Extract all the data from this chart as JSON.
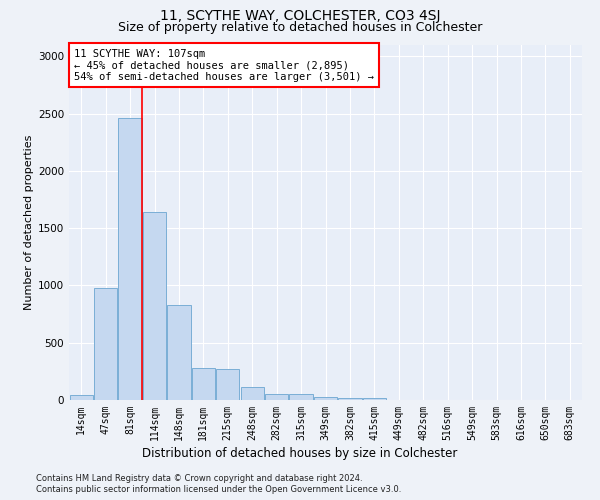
{
  "title": "11, SCYTHE WAY, COLCHESTER, CO3 4SJ",
  "subtitle": "Size of property relative to detached houses in Colchester",
  "xlabel": "Distribution of detached houses by size in Colchester",
  "ylabel": "Number of detached properties",
  "footnote1": "Contains HM Land Registry data © Crown copyright and database right 2024.",
  "footnote2": "Contains public sector information licensed under the Open Government Licence v3.0.",
  "categories": [
    "14sqm",
    "47sqm",
    "81sqm",
    "114sqm",
    "148sqm",
    "181sqm",
    "215sqm",
    "248sqm",
    "282sqm",
    "315sqm",
    "349sqm",
    "382sqm",
    "415sqm",
    "449sqm",
    "482sqm",
    "516sqm",
    "549sqm",
    "583sqm",
    "616sqm",
    "650sqm",
    "683sqm"
  ],
  "values": [
    45,
    980,
    2460,
    1640,
    830,
    280,
    275,
    115,
    55,
    50,
    30,
    20,
    20,
    0,
    0,
    0,
    0,
    0,
    0,
    0,
    0
  ],
  "bar_color": "#c5d8f0",
  "bar_edge_color": "#7aaed6",
  "vline_x_index": 2,
  "vline_color": "red",
  "annotation_text": "11 SCYTHE WAY: 107sqm\n← 45% of detached houses are smaller (2,895)\n54% of semi-detached houses are larger (3,501) →",
  "annotation_box_color": "white",
  "annotation_box_edge_color": "red",
  "ylim": [
    0,
    3100
  ],
  "yticks": [
    0,
    500,
    1000,
    1500,
    2000,
    2500,
    3000
  ],
  "bg_color": "#eef2f8",
  "plot_bg_color": "#e8eef8",
  "grid_color": "white",
  "title_fontsize": 10,
  "subtitle_fontsize": 9,
  "ylabel_fontsize": 8,
  "xlabel_fontsize": 8.5,
  "tick_fontsize": 7,
  "annotation_fontsize": 7.5,
  "footnote_fontsize": 6
}
